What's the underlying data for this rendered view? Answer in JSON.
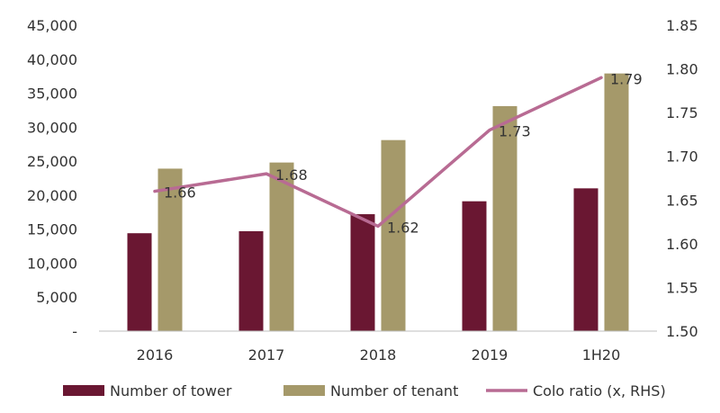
{
  "chart_data": {
    "type": "bar",
    "categories": [
      "2016",
      "2017",
      "2018",
      "2019",
      "1H20"
    ],
    "series": [
      {
        "name": "Number of tower",
        "kind": "bar",
        "axis": "left",
        "color": "#6a1732",
        "values": [
          14400,
          14700,
          17200,
          19100,
          21000
        ]
      },
      {
        "name": "Number of tenant",
        "kind": "bar",
        "axis": "left",
        "color": "#a5996a",
        "values": [
          23900,
          24800,
          28100,
          33100,
          37900
        ]
      },
      {
        "name": "Colo ratio (x, RHS)",
        "kind": "line",
        "axis": "right",
        "color": "#b86b93",
        "values": [
          1.66,
          1.68,
          1.62,
          1.73,
          1.79
        ],
        "labels": [
          "1.66",
          "1.68",
          "1.62",
          "1.73",
          "1.79"
        ]
      }
    ],
    "ylim": [
      0,
      45000
    ],
    "y2lim": [
      1.5,
      1.85
    ],
    "y_ticks": [
      "-",
      "5,000",
      "10,000",
      "15,000",
      "20,000",
      "25,000",
      "30,000",
      "35,000",
      "40,000",
      "45,000"
    ],
    "y2_ticks": [
      "1.50",
      "1.55",
      "1.60",
      "1.65",
      "1.70",
      "1.75",
      "1.80",
      "1.85"
    ],
    "grid": false,
    "legend_position": "bottom"
  }
}
